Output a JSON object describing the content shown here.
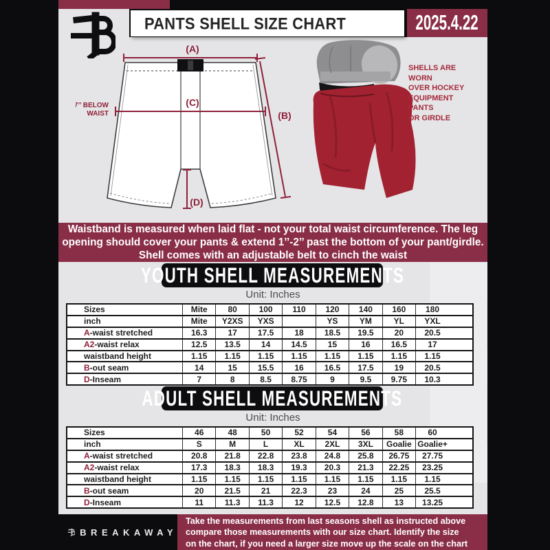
{
  "colors": {
    "maroon": "#8a2e48",
    "dark_red": "#8e1f38",
    "shell_red": "#a32231",
    "black": "#0c0c0e",
    "page_gray": "#e5e5e7"
  },
  "header": {
    "title": "PANTS SHELL SIZE CHART",
    "date": "2025.4.22"
  },
  "diagram": {
    "label_a": "(A)",
    "label_b": "(B)",
    "label_c": "(C)",
    "label_d": "(D)",
    "below_waist_lines": [
      "7’’ BELOW",
      "WAIST"
    ],
    "photo_note_lines": [
      "SHELLS ARE WORN",
      "OVER HOCKEY",
      "EQUIPMENT PANTS",
      "OR GIRDLE"
    ]
  },
  "banner_lines": [
    "Waistband is measured when laid flat - not your total waist circumference. The leg",
    "opening should cover your pants & extend 1’’-2’’ past the bottom of your pant/girdle.",
    "Shell comes with an adjustable belt to cinch the waist"
  ],
  "youth": {
    "title": "YOUTH SHELL MEASUREMENTS",
    "unit": "Unit: Inches",
    "columns": [
      "Sizes",
      "Mite",
      "80",
      "100",
      "110",
      "120",
      "140",
      "160",
      "180"
    ],
    "rows": [
      {
        "prefix": "",
        "label": "inch",
        "values": [
          "Mite",
          "Y2XS",
          "YXS",
          "",
          "YS",
          "YM",
          "YL",
          "YXL"
        ]
      },
      {
        "prefix": "A",
        "label": "-waist stretched",
        "values": [
          "16.3",
          "17",
          "17.5",
          "18",
          "18.5",
          "19.5",
          "20",
          "20.5"
        ]
      },
      {
        "prefix": "A2",
        "label": "-waist relax",
        "values": [
          "12.5",
          "13.5",
          "14",
          "14.5",
          "15",
          "16",
          "16.5",
          "17"
        ]
      },
      {
        "prefix": "",
        "label": "waistband height",
        "values": [
          "1.15",
          "1.15",
          "1.15",
          "1.15",
          "1.15",
          "1.15",
          "1.15",
          "1.15"
        ]
      },
      {
        "prefix": "B",
        "label": "-out seam",
        "values": [
          "14",
          "15",
          "15.5",
          "16",
          "16.5",
          "17.5",
          "19",
          "20.5"
        ]
      },
      {
        "prefix": "D",
        "label": "-Inseam",
        "values": [
          "7",
          "8",
          "8.5",
          "8.75",
          "9",
          "9.5",
          "9.75",
          "10.3"
        ]
      }
    ]
  },
  "adult": {
    "title": "ADULT SHELL MEASUREMENTS",
    "unit": "Unit: Inches",
    "columns": [
      "Sizes",
      "46",
      "48",
      "50",
      "52",
      "54",
      "56",
      "58",
      "60"
    ],
    "rows": [
      {
        "prefix": "",
        "label": "inch",
        "values": [
          "S",
          "M",
          "L",
          "XL",
          "2XL",
          "3XL",
          "Goalie",
          "Goalie+"
        ]
      },
      {
        "prefix": "A",
        "label": "-waist stretched",
        "values": [
          "20.8",
          "21.8",
          "22.8",
          "23.8",
          "24.8",
          "25.8",
          "26.75",
          "27.75"
        ]
      },
      {
        "prefix": "A2",
        "label": "-waist relax",
        "values": [
          "17.3",
          "18.3",
          "18.3",
          "19.3",
          "20.3",
          "21.3",
          "22.25",
          "23.25"
        ]
      },
      {
        "prefix": "",
        "label": "waistband height",
        "values": [
          "1.15",
          "1.15",
          "1.15",
          "1.15",
          "1.15",
          "1.15",
          "1.15",
          "1.15"
        ]
      },
      {
        "prefix": "B",
        "label": "-out seam",
        "values": [
          "20",
          "21.5",
          "21",
          "22.3",
          "23",
          "24",
          "25",
          "25.5"
        ]
      },
      {
        "prefix": "D",
        "label": "-Inseam",
        "values": [
          "11",
          "11.3",
          "11.3",
          "12",
          "12.5",
          "12.8",
          "13",
          "13.25"
        ]
      }
    ]
  },
  "footer": {
    "brand": "BREAKAWAY",
    "lines": [
      "Take the measurements from last seasons shell as instructed above",
      "compare those measurements  with our size chart. Identify the size",
      "on the chart, if you need a larger size move up the scale on the chart"
    ]
  },
  "watermark_letter": "B"
}
